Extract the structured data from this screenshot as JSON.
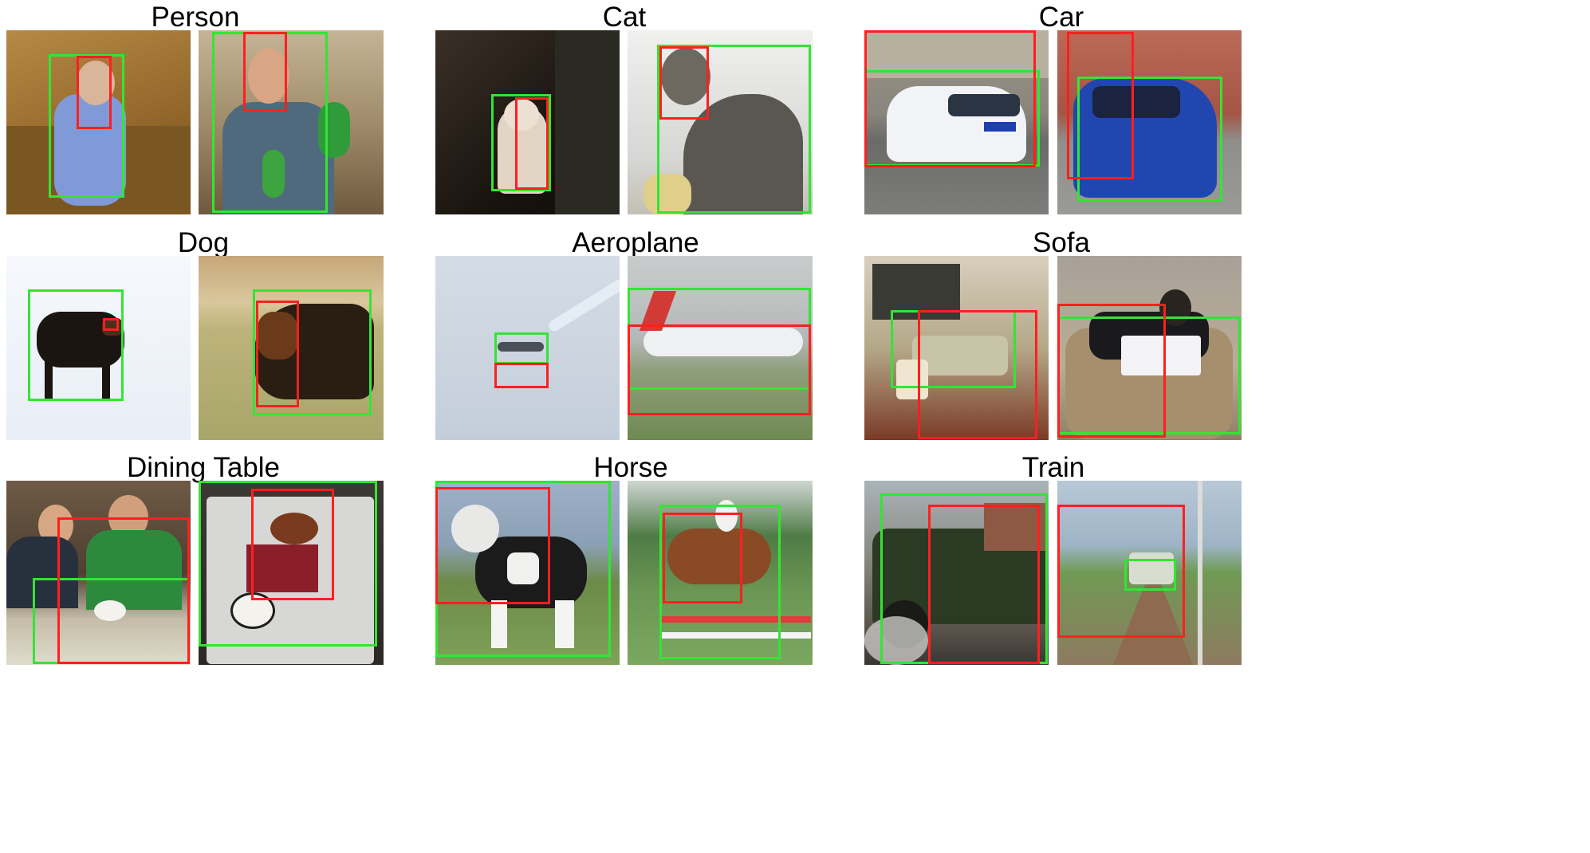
{
  "figure": {
    "categories": [
      {
        "title": "Person",
        "panels": [
          {
            "scene": "baby in blue pajamas on a tan leather sofa",
            "colors": {
              "bg": "#a2783a",
              "subject": "#7f9ad6"
            }
          },
          {
            "scene": "man holding colorful parrots in an aviary",
            "colors": {
              "bg": "#a29070",
              "subject": "#4f6a7d"
            }
          }
        ]
      },
      {
        "title": "Cat",
        "panels": [
          {
            "scene": "white cat sitting in a dark room",
            "colors": {
              "bg": "#231c16",
              "subject": "#e3d5c6"
            }
          },
          {
            "scene": "grey tabby cat sitting, looking over its shoulder",
            "colors": {
              "bg": "#d9d9d7",
              "subject": "#5a5650"
            }
          }
        ]
      },
      {
        "title": "Car",
        "panels": [
          {
            "scene": "white police car parked on a street",
            "colors": {
              "bg": "#7c7c7a",
              "subject": "#f1f3f6"
            }
          },
          {
            "scene": "blue hatchback parked beside a brick house",
            "colors": {
              "bg": "#a55545",
              "subject": "#2146b0"
            }
          }
        ]
      },
      {
        "title": "Dog",
        "panels": [
          {
            "scene": "black dog walking in snow",
            "colors": {
              "bg": "#eef2f8",
              "subject": "#1a1511"
            }
          },
          {
            "scene": "rottweiler lying on grass in front of a stone wall",
            "colors": {
              "bg": "#bdae7a",
              "subject": "#2a1d12"
            }
          }
        ]
      },
      {
        "title": "Aeroplane",
        "panels": [
          {
            "scene": "jet aircraft with contrail in a pale sky",
            "colors": {
              "bg": "#cdd6e2",
              "subject": "#4a5058"
            }
          },
          {
            "scene": "Air Canada airliner on a runway",
            "colors": {
              "bg": "#b9bdbd",
              "subject": "#eef0f2"
            }
          }
        ]
      },
      {
        "title": "Sofa",
        "panels": [
          {
            "scene": "living room with sofa, armchair and table",
            "colors": {
              "bg": "#a0906e",
              "subject": "#c7c4a8"
            }
          },
          {
            "scene": "person with laptop reclining on a sofa",
            "colors": {
              "bg": "#b8ad96",
              "subject": "#1a1a1c"
            }
          }
        ]
      },
      {
        "title": "Dining Table",
        "panels": [
          {
            "scene": "two men seated at a restaurant table",
            "colors": {
              "bg": "#5a4838",
              "subject": "#2d8a3d"
            }
          },
          {
            "scene": "long table set with plates and food",
            "colors": {
              "bg": "#3c3834",
              "subject": "#e8e6e2"
            }
          }
        ]
      },
      {
        "title": "Horse",
        "panels": [
          {
            "scene": "black and white horse standing on grass",
            "colors": {
              "bg": "#8fa0b8",
              "subject": "#1b1b1b"
            }
          },
          {
            "scene": "rider on a brown horse jumping a fence",
            "colors": {
              "bg": "#6f8f6a",
              "subject": "#8a4a26"
            }
          }
        ]
      },
      {
        "title": "Train",
        "panels": [
          {
            "scene": "green steam locomotive at a station",
            "colors": {
              "bg": "#8a8a84",
              "subject": "#2b3a22"
            }
          },
          {
            "scene": "small train on curving tracks under wires",
            "colors": {
              "bg": "#9eb4c6",
              "subject": "#d8ddd0"
            }
          }
        ]
      }
    ]
  },
  "legend_colors": {
    "red_box": "#ff1f1f",
    "green_box": "#33e533"
  }
}
